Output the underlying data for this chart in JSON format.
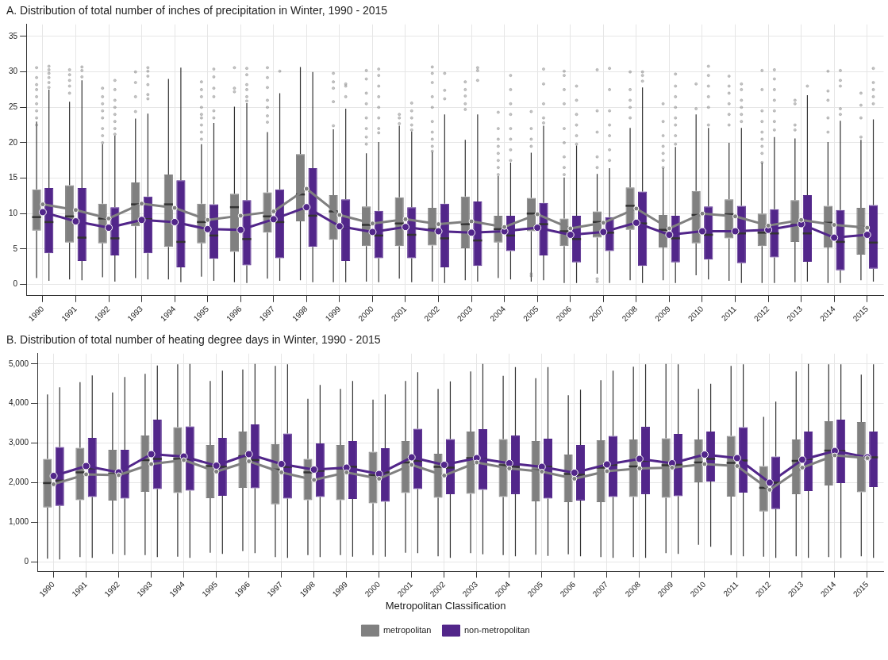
{
  "chart_data": [
    {
      "type": "box",
      "title": "A. Distribution of total number of inches of precipitation in Winter, 1990 - 2015",
      "categories": [
        "1990",
        "1991",
        "1992",
        "1993",
        "1994",
        "1995",
        "1996",
        "1997",
        "1998",
        "1999",
        "2000",
        "2001",
        "2002",
        "2003",
        "2004",
        "2005",
        "2006",
        "2007",
        "2008",
        "2009",
        "2010",
        "2011",
        "2012",
        "2013",
        "2014",
        "2015"
      ],
      "series": [
        {
          "color": "#808080",
          "boxes": [
            {
              "low": 0.9,
              "q1": 7.6,
              "median": 9.5,
              "q3": 13.4,
              "high": 23.0,
              "outliers": [
                22.5,
                23.5,
                24.5,
                25.5,
                26.5,
                27.5,
                28.2,
                29.2,
                30.6
              ]
            },
            {
              "low": 0.7,
              "q1": 5.9,
              "median": 9.6,
              "q3": 14.0,
              "high": 25.8,
              "outliers": [
                27.0,
                28.0,
                28.8,
                29.6,
                30.3
              ]
            },
            {
              "low": 1.0,
              "q1": 5.8,
              "median": 9.3,
              "q3": 11.4,
              "high": 19.8,
              "outliers": [
                20.0,
                21.0,
                22.0,
                23.5,
                24.5,
                25.5,
                26.5,
                27.7
              ]
            },
            {
              "low": 0.9,
              "q1": 8.2,
              "median": 11.3,
              "q3": 14.4,
              "high": 23.4,
              "outliers": [
                24.4,
                26.5,
                28.5,
                30.0
              ]
            },
            {
              "low": 0.7,
              "q1": 5.3,
              "median": 11.3,
              "q3": 15.5,
              "high": 29.0
            },
            {
              "low": 1.1,
              "q1": 5.8,
              "median": 8.8,
              "q3": 11.4,
              "high": 19.8,
              "outliers": [
                20.5,
                21.5,
                22.5,
                23.5,
                24.0,
                25.0,
                26.5,
                27.5,
                28.6
              ]
            },
            {
              "low": 0.3,
              "q1": 4.6,
              "median": 10.9,
              "q3": 12.8,
              "high": 25.1,
              "outliers": [
                27.2,
                27.7,
                30.6
              ]
            },
            {
              "low": 0.8,
              "q1": 7.3,
              "median": 9.6,
              "q3": 13.0,
              "high": 21.5,
              "outliers": [
                22.9,
                23.8,
                25.0,
                26.0,
                27.8,
                29.2,
                30.6
              ]
            },
            {
              "low": 0.6,
              "q1": 8.9,
              "median": 12.7,
              "q3": 18.4,
              "high": 30.7
            },
            {
              "low": 0.3,
              "q1": 6.3,
              "median": 10.3,
              "q3": 12.6,
              "high": 21.9,
              "outliers": [
                22.4,
                25.8,
                27.7,
                28.6,
                29.8
              ]
            },
            {
              "low": 0.4,
              "q1": 5.4,
              "median": 8.4,
              "q3": 11.0,
              "high": 18.5,
              "outliers": [
                19.8,
                20.8,
                22.0,
                23.5,
                25.5,
                27.0,
                29.0,
                30.2
              ]
            },
            {
              "low": 0.8,
              "q1": 5.4,
              "median": 8.6,
              "q3": 12.3,
              "high": 22.4,
              "outliers": [
                22.7,
                23.5,
                24.0
              ]
            },
            {
              "low": 0.4,
              "q1": 5.5,
              "median": 7.8,
              "q3": 10.8,
              "high": 18.7,
              "outliers": [
                18.8,
                19.5,
                20.5,
                21.5,
                23.0,
                25.0,
                26.5,
                28.5,
                29.8,
                30.7
              ]
            },
            {
              "low": 0.6,
              "q1": 5.1,
              "median": 8.5,
              "q3": 12.4,
              "high": 20.4,
              "outliers": [
                24.7,
                25.5,
                26.6,
                27.5,
                28.6
              ]
            },
            {
              "low": 0.9,
              "q1": 5.9,
              "median": 7.8,
              "q3": 9.7,
              "high": 15.3,
              "outliers": [
                15.5,
                16.5,
                17.5,
                18.5,
                19.5,
                20.5,
                22.0,
                24.3
              ]
            },
            {
              "low": 0.4,
              "q1": 7.5,
              "median": 10.0,
              "q3": 12.2,
              "high": 18.6,
              "outliers": [
                1.2,
                1.5,
                19.5,
                20.5,
                22.0,
                24.4
              ]
            },
            {
              "low": 0.2,
              "q1": 5.4,
              "median": 7.5,
              "q3": 9.3,
              "high": 15.1,
              "outliers": [
                15.5,
                16.5,
                18.0,
                20.0,
                22.0,
                25.5,
                27.5,
                29.5,
                30.1
              ]
            },
            {
              "low": 1.5,
              "q1": 6.6,
              "median": 8.8,
              "q3": 10.3,
              "high": 15.6,
              "outliers": [
                0.4,
                0.8,
                16.5,
                18.0,
                21.5,
                24.5,
                30.3
              ]
            },
            {
              "low": 0.6,
              "q1": 7.7,
              "median": 11.1,
              "q3": 13.7,
              "high": 22.1,
              "outliers": [
                23.5,
                25.0,
                26.0,
                27.5,
                30.0
              ]
            },
            {
              "low": 0.6,
              "q1": 5.2,
              "median": 7.7,
              "q3": 9.8,
              "high": 16.4,
              "outliers": [
                16.5,
                17.5,
                18.5,
                19.5,
                21.0,
                23.0,
                25.5
              ]
            },
            {
              "low": 1.3,
              "q1": 5.8,
              "median": 9.8,
              "q3": 13.2,
              "high": 24.0,
              "outliers": [
                24.8,
                28.3
              ]
            },
            {
              "low": 0.5,
              "q1": 6.5,
              "median": 9.9,
              "q3": 12.0,
              "high": 20.0,
              "outliers": [
                22.5,
                24.0,
                25.5,
                27.0,
                28.0,
                29.4
              ]
            },
            {
              "low": 0.2,
              "q1": 5.4,
              "median": 7.3,
              "q3": 10.0,
              "high": 17.2,
              "outliers": [
                17.2,
                18.5,
                19.5,
                20.5,
                21.5,
                23.0,
                24.5,
                27.5,
                30.2
              ]
            },
            {
              "low": 0.3,
              "q1": 6.0,
              "median": 8.4,
              "q3": 11.9,
              "high": 20.6,
              "outliers": [
                21.8,
                22.5,
                25.5,
                26.0
              ]
            },
            {
              "low": 0.2,
              "q1": 5.2,
              "median": 8.7,
              "q3": 11.1,
              "high": 20.1,
              "outliers": [
                21.5,
                23.5,
                26.0,
                27.3,
                30.1
              ]
            },
            {
              "low": 0.6,
              "q1": 4.2,
              "median": 8.1,
              "q3": 10.8,
              "high": 20.4,
              "outliers": [
                20.8,
                23.5,
                25.3,
                27.0
              ]
            }
          ]
        },
        {
          "color": "#52268a",
          "boxes": [
            {
              "low": 0.5,
              "q1": 4.4,
              "median": 8.8,
              "q3": 13.6,
              "high": 27.5,
              "outliers": [
                27.8,
                28.5,
                29.2,
                29.8,
                30.3,
                30.8
              ]
            },
            {
              "low": 0.6,
              "q1": 3.3,
              "median": 6.6,
              "q3": 13.6,
              "high": 28.8,
              "outliers": [
                29.3,
                30.2,
                30.7
              ]
            },
            {
              "low": 0.4,
              "q1": 4.1,
              "median": 6.5,
              "q3": 10.9,
              "high": 21.0,
              "outliers": [
                21.2,
                22.0,
                23.0,
                24.0,
                25.0,
                26.0,
                27.5,
                28.8
              ]
            },
            {
              "low": 0.7,
              "q1": 4.4,
              "median": 9.2,
              "q3": 12.4,
              "high": 24.1,
              "outliers": [
                26.2,
                26.8,
                28.2,
                29.4,
                30.1,
                30.6
              ]
            },
            {
              "low": 0.3,
              "q1": 2.4,
              "median": 6.0,
              "q3": 14.7,
              "high": 30.6
            },
            {
              "low": 0.5,
              "q1": 3.6,
              "median": 6.9,
              "q3": 11.3,
              "high": 22.8,
              "outliers": [
                23.5,
                24.5,
                26.5,
                27.7,
                29.3,
                30.4
              ]
            },
            {
              "low": 0.2,
              "q1": 2.7,
              "median": 6.4,
              "q3": 11.9,
              "high": 25.6,
              "outliers": [
                25.9,
                26.5,
                27.5,
                28.2,
                29.6,
                30.5
              ]
            },
            {
              "low": 0.5,
              "q1": 3.7,
              "median": 8.8,
              "q3": 13.4,
              "high": 27.0,
              "outliers": [
                30.1
              ]
            },
            {
              "low": 0.3,
              "q1": 5.3,
              "median": 9.7,
              "q3": 16.4,
              "high": 30.0
            },
            {
              "low": 0.3,
              "q1": 3.3,
              "median": 8.0,
              "q3": 12.0,
              "high": 24.8,
              "outliers": [
                26.5,
                28.0,
                28.3
              ]
            },
            {
              "low": 0.3,
              "q1": 3.7,
              "median": 6.9,
              "q3": 10.4,
              "high": 20.1,
              "outliers": [
                21.4,
                22.0,
                23.5,
                25.0,
                26.5,
                28.0,
                29.5,
                30.4
              ]
            },
            {
              "low": 0.3,
              "q1": 3.7,
              "median": 7.0,
              "q3": 10.9,
              "high": 21.6,
              "outliers": [
                21.8,
                22.5,
                23.5,
                24.5,
                25.6
              ]
            },
            {
              "low": 0.2,
              "q1": 2.4,
              "median": 6.5,
              "q3": 11.4,
              "high": 24.0,
              "outliers": [
                26.2,
                27.4,
                29.8
              ]
            },
            {
              "low": 0.4,
              "q1": 2.6,
              "median": 6.2,
              "q3": 11.7,
              "high": 24.0,
              "outliers": [
                28.8,
                30.2,
                30.6
              ]
            },
            {
              "low": 0.7,
              "q1": 4.7,
              "median": 6.9,
              "q3": 9.7,
              "high": 17.2,
              "outliers": [
                17.5,
                19.0,
                20.5,
                22.0,
                24.0,
                25.5,
                27.5,
                29.5
              ]
            },
            {
              "low": 0.6,
              "q1": 4.1,
              "median": 8.5,
              "q3": 11.5,
              "high": 22.4,
              "outliers": [
                22.8,
                23.5,
                25.5,
                28.3,
                30.4
              ]
            },
            {
              "low": 0.2,
              "q1": 3.1,
              "median": 6.4,
              "q3": 9.7,
              "high": 19.6,
              "outliers": [
                19.8,
                21.0,
                22.5,
                24.0,
                26.0,
                28.0
              ]
            },
            {
              "low": 0.2,
              "q1": 4.7,
              "median": 7.3,
              "q3": 9.5,
              "high": 16.4,
              "outliers": [
                17.5,
                19.0,
                21.0,
                22.5,
                24.5,
                27.5,
                30.5
              ]
            },
            {
              "low": 0.2,
              "q1": 2.6,
              "median": 8.6,
              "q3": 13.1,
              "high": 27.8,
              "outliers": [
                28.7,
                29.5,
                30.0
              ]
            },
            {
              "low": 0.2,
              "q1": 3.1,
              "median": 6.5,
              "q3": 9.7,
              "high": 19.4,
              "outliers": [
                19.8,
                21.0,
                22.5,
                23.5,
                25.0,
                26.5,
                28.0,
                29.7
              ]
            },
            {
              "low": 0.7,
              "q1": 3.5,
              "median": 7.0,
              "q3": 11.0,
              "high": 22.1,
              "outliers": [
                22.5,
                25.0,
                26.5,
                28.0,
                29.5,
                30.8
              ]
            },
            {
              "low": 0.2,
              "q1": 3.0,
              "median": 7.2,
              "q3": 11.1,
              "high": 22.1,
              "outliers": [
                23.0,
                24.0,
                25.0,
                26.0,
                27.5,
                28.3
              ]
            },
            {
              "low": 0.2,
              "q1": 3.8,
              "median": 7.2,
              "q3": 10.6,
              "high": 20.8,
              "outliers": [
                21.8,
                23.0,
                24.5,
                26.0,
                27.5,
                29.0,
                30.3
              ]
            },
            {
              "low": 0.4,
              "q1": 3.2,
              "median": 7.2,
              "q3": 12.6,
              "high": 26.7,
              "outliers": [
                28.0
              ]
            },
            {
              "low": 0.2,
              "q1": 2.0,
              "median": 6.0,
              "q3": 10.5,
              "high": 23.1,
              "outliers": [
                24.0,
                24.8,
                28.0,
                28.8,
                30.2
              ]
            },
            {
              "low": 0.4,
              "q1": 2.2,
              "median": 5.9,
              "q3": 11.2,
              "high": 23.3,
              "outliers": [
                25.5,
                26.5,
                27.5,
                28.5,
                30.5
              ]
            }
          ]
        },
        {
          "type": "line",
          "color": "#808080",
          "values": [
            11.3,
            10.5,
            9.3,
            11.4,
            10.8,
            9.1,
            9.7,
            10.3,
            13.5,
            9.8,
            8.6,
            9.2,
            8.5,
            8.9,
            8.1,
            9.9,
            7.9,
            8.7,
            10.7,
            7.9,
            10.0,
            9.6,
            8.3,
            9.1,
            8.4,
            8.0
          ]
        },
        {
          "type": "line",
          "color": "#52268a",
          "values": [
            10.2,
            8.9,
            8.0,
            9.1,
            8.8,
            7.8,
            7.7,
            9.2,
            10.9,
            8.2,
            7.4,
            8.1,
            7.5,
            7.3,
            7.5,
            8.0,
            7.0,
            7.4,
            8.7,
            7.0,
            7.5,
            7.5,
            7.7,
            8.5,
            6.6,
            7.0
          ]
        }
      ],
      "ylim": [
        -1.6,
        36.7
      ],
      "yticks": [
        0,
        5,
        10,
        15,
        20,
        25,
        30,
        35
      ],
      "grid": true,
      "marker": "circle"
    },
    {
      "type": "box",
      "title": "B. Distribution of total number of heating degree days in Winter, 1990 - 2015",
      "categories": [
        "1990",
        "1991",
        "1992",
        "1993",
        "1994",
        "1995",
        "1996",
        "1997",
        "1998",
        "1999",
        "2000",
        "2001",
        "2002",
        "2003",
        "2004",
        "2005",
        "2006",
        "2007",
        "2008",
        "2009",
        "2010",
        "2011",
        "2012",
        "2013",
        "2014",
        "2015"
      ],
      "series": [
        {
          "name": "metropolitan",
          "color": "#808080",
          "boxes": [
            {
              "low": 80,
              "q1": 1370,
              "median": 1990,
              "q3": 2600,
              "high": 4230
            },
            {
              "low": 120,
              "q1": 1560,
              "median": 2260,
              "q3": 2880,
              "high": 4540
            },
            {
              "low": 200,
              "q1": 1550,
              "median": 2220,
              "q3": 2830,
              "high": 4280
            },
            {
              "low": 170,
              "q1": 1770,
              "median": 2570,
              "q3": 3190,
              "high": 4750
            },
            {
              "low": 130,
              "q1": 1740,
              "median": 2600,
              "q3": 3400,
              "high": 4990
            },
            {
              "low": 230,
              "q1": 1610,
              "median": 2420,
              "q3": 2950,
              "high": 4570
            },
            {
              "low": 270,
              "q1": 1870,
              "median": 2670,
              "q3": 3290,
              "high": 4860
            },
            {
              "low": 120,
              "q1": 1450,
              "median": 2330,
              "q3": 2970,
              "high": 4950
            },
            {
              "low": 170,
              "q1": 1560,
              "median": 2260,
              "q3": 2600,
              "high": 4120
            },
            {
              "low": 170,
              "q1": 1560,
              "median": 2360,
              "q3": 2950,
              "high": 4370
            },
            {
              "low": 170,
              "q1": 1480,
              "median": 2190,
              "q3": 2780,
              "high": 4100
            },
            {
              "low": 230,
              "q1": 1740,
              "median": 2510,
              "q3": 3050,
              "high": 4570
            },
            {
              "low": 140,
              "q1": 1620,
              "median": 2400,
              "q3": 2730,
              "high": 4370
            },
            {
              "low": 220,
              "q1": 1720,
              "median": 2620,
              "q3": 3290,
              "high": 4810
            },
            {
              "low": 170,
              "q1": 1640,
              "median": 2440,
              "q3": 3100,
              "high": 4700
            },
            {
              "low": 180,
              "q1": 1530,
              "median": 2310,
              "q3": 3050,
              "high": 4640
            },
            {
              "low": 190,
              "q1": 1510,
              "median": 2220,
              "q3": 2710,
              "high": 4210
            },
            {
              "low": 120,
              "q1": 1510,
              "median": 2380,
              "q3": 3070,
              "high": 4590
            },
            {
              "low": 120,
              "q1": 1640,
              "median": 2410,
              "q3": 3090,
              "high": 4930
            },
            {
              "low": 220,
              "q1": 1620,
              "median": 2440,
              "q3": 3120,
              "high": 5000
            },
            {
              "low": 430,
              "q1": 2010,
              "median": 2510,
              "q3": 3090,
              "high": 4370
            },
            {
              "low": 170,
              "q1": 1650,
              "median": 2500,
              "q3": 3180,
              "high": 4950
            },
            {
              "low": 130,
              "q1": 1270,
              "median": 1870,
              "q3": 2420,
              "high": 3660
            },
            {
              "low": 140,
              "q1": 1710,
              "median": 2550,
              "q3": 3090,
              "high": 4810
            },
            {
              "low": 120,
              "q1": 1930,
              "median": 2810,
              "q3": 3550,
              "high": 4990
            },
            {
              "low": 140,
              "q1": 1760,
              "median": 2650,
              "q3": 3530,
              "high": 4730
            }
          ]
        },
        {
          "name": "non-metropolitan",
          "color": "#52268a",
          "boxes": [
            {
              "low": 60,
              "q1": 1410,
              "median": 2050,
              "q3": 2900,
              "high": 4410
            },
            {
              "low": 100,
              "q1": 1640,
              "median": 2360,
              "q3": 3130,
              "high": 4710
            },
            {
              "low": 170,
              "q1": 1600,
              "median": 2240,
              "q3": 2830,
              "high": 4670
            },
            {
              "low": 120,
              "q1": 1840,
              "median": 2600,
              "q3": 3590,
              "high": 4960
            },
            {
              "low": 100,
              "q1": 1800,
              "median": 2600,
              "q3": 3420,
              "high": 5000
            },
            {
              "low": 200,
              "q1": 1670,
              "median": 2400,
              "q3": 3130,
              "high": 4830
            },
            {
              "low": 220,
              "q1": 1860,
              "median": 2570,
              "q3": 3470,
              "high": 5000
            },
            {
              "low": 100,
              "q1": 1600,
              "median": 2400,
              "q3": 3240,
              "high": 4990
            },
            {
              "low": 120,
              "q1": 1640,
              "median": 2300,
              "q3": 2990,
              "high": 4470
            },
            {
              "low": 130,
              "q1": 1590,
              "median": 2400,
              "q3": 3050,
              "high": 4570
            },
            {
              "low": 130,
              "q1": 1520,
              "median": 2260,
              "q3": 2870,
              "high": 4230
            },
            {
              "low": 220,
              "q1": 1840,
              "median": 2550,
              "q3": 3360,
              "high": 4790
            },
            {
              "low": 100,
              "q1": 1710,
              "median": 2380,
              "q3": 3100,
              "high": 4560
            },
            {
              "low": 190,
              "q1": 1820,
              "median": 2600,
              "q3": 3350,
              "high": 5000
            },
            {
              "low": 140,
              "q1": 1710,
              "median": 2400,
              "q3": 3190,
              "high": 4920
            },
            {
              "low": 150,
              "q1": 1600,
              "median": 2400,
              "q3": 3110,
              "high": 4920
            },
            {
              "low": 140,
              "q1": 1550,
              "median": 2200,
              "q3": 2950,
              "high": 4350
            },
            {
              "low": 100,
              "q1": 1640,
              "median": 2450,
              "q3": 3180,
              "high": 4830
            },
            {
              "low": 100,
              "q1": 1710,
              "median": 2550,
              "q3": 3410,
              "high": 4990
            },
            {
              "low": 200,
              "q1": 1660,
              "median": 2450,
              "q3": 3230,
              "high": 4990
            },
            {
              "low": 380,
              "q1": 2030,
              "median": 2600,
              "q3": 3290,
              "high": 4500
            },
            {
              "low": 140,
              "q1": 1750,
              "median": 2560,
              "q3": 3400,
              "high": 4990
            },
            {
              "low": 100,
              "q1": 1330,
              "median": 2000,
              "q3": 2660,
              "high": 4050
            },
            {
              "low": 100,
              "q1": 1790,
              "median": 2600,
              "q3": 3290,
              "high": 5000
            },
            {
              "low": 100,
              "q1": 1990,
              "median": 2800,
              "q3": 3590,
              "high": 4990
            },
            {
              "low": 100,
              "q1": 1890,
              "median": 2640,
              "q3": 3290,
              "high": 4990
            }
          ]
        },
        {
          "type": "line",
          "color": "#808080",
          "values": [
            1960,
            2210,
            2190,
            2470,
            2570,
            2280,
            2540,
            2260,
            2070,
            2260,
            2100,
            2450,
            2180,
            2510,
            2360,
            2280,
            2100,
            2290,
            2360,
            2380,
            2470,
            2420,
            1820,
            2380,
            2690,
            2620
          ]
        },
        {
          "type": "line",
          "color": "#52268a",
          "values": [
            2170,
            2420,
            2260,
            2720,
            2660,
            2430,
            2720,
            2470,
            2330,
            2380,
            2220,
            2640,
            2450,
            2620,
            2490,
            2400,
            2250,
            2460,
            2600,
            2490,
            2710,
            2620,
            2000,
            2580,
            2800,
            2640
          ]
        }
      ],
      "ylim": [
        -240,
        5260
      ],
      "yticks": [
        0,
        {
          "value": 1000,
          "label": "1,000"
        },
        {
          "value": 2000,
          "label": "2,000"
        },
        {
          "value": 3000,
          "label": "3,000"
        },
        {
          "value": 4000,
          "label": "4,000"
        },
        {
          "value": 5000,
          "label": "5,000"
        }
      ],
      "grid": true,
      "marker": "circle",
      "legend": "bottom",
      "legend_title": "Metropolitan Classification"
    }
  ]
}
